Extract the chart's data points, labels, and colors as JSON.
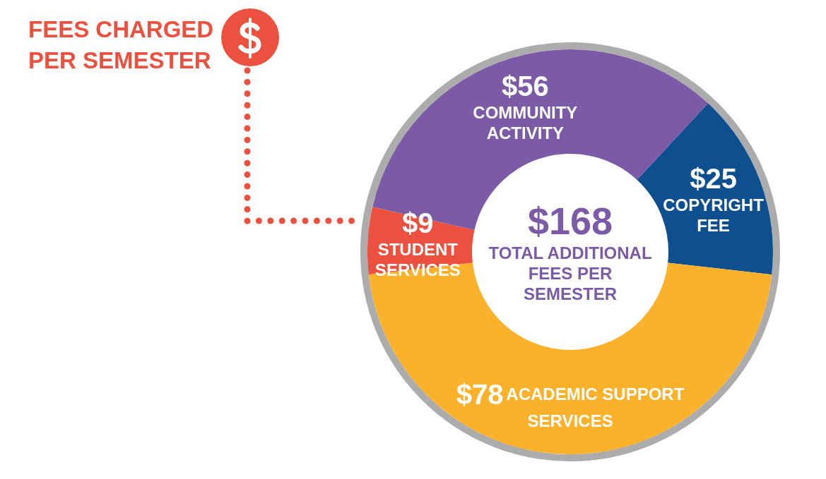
{
  "chart_data": {
    "type": "donut",
    "title": "FEES CHARGED PER SEMESTER",
    "categories": [
      "STUDENT SERVICES",
      "COMMUNITY ACTIVITY",
      "COPYRIGHT FEE",
      "ACADEMIC SUPPORT SERVICES"
    ],
    "values": [
      9,
      56,
      25,
      78
    ],
    "colors": [
      "#ec5140",
      "#7b5ba6",
      "#0e4f8f",
      "#fbb12a"
    ],
    "value_labels": [
      "$9",
      "$56",
      "$25",
      "$78"
    ],
    "annotations": [
      "$168",
      "TOTAL ADDITIONAL FEES PER SEMESTER"
    ]
  }
}
